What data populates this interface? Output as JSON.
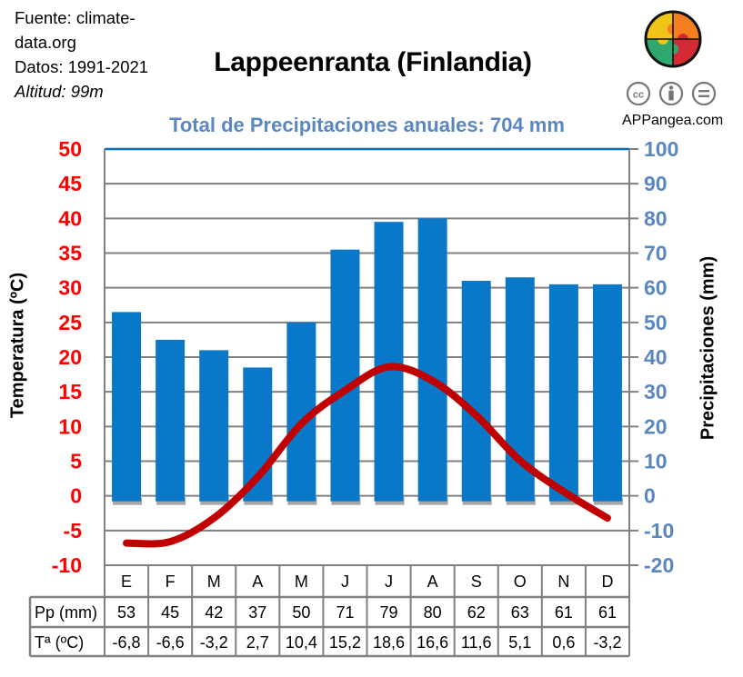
{
  "meta": {
    "source_line1": "Fuente: climate-",
    "source_line2": "data.org",
    "period": "Datos: 1991-2021",
    "altitude": "Altitud: 99m"
  },
  "brand": {
    "site": "APPangea.com",
    "logo_icon": "puzzle-globe-icon",
    "license_icons": [
      "cc-icon",
      "attribution-icon",
      "no-derivatives-icon"
    ]
  },
  "colors": {
    "bar": "#0a78c8",
    "bar_shadow": "#a6a6a6",
    "line": "#c00000",
    "left_axis": "#ff0000",
    "right_axis": "#5b87c0",
    "grid": "#808080",
    "top_border": "#0a6fb8"
  },
  "chart_data": {
    "type": "bar",
    "title": "Lappeenranta (Finlandia)",
    "subtitle": "Total de Precipitaciones anuales: 704 mm",
    "categories": [
      "E",
      "F",
      "M",
      "A",
      "M",
      "J",
      "J",
      "A",
      "S",
      "O",
      "N",
      "D"
    ],
    "series": [
      {
        "name": "Precipitaciones (mm)",
        "type": "bar",
        "axis": "right",
        "values": [
          53,
          45,
          42,
          37,
          50,
          71,
          79,
          80,
          62,
          63,
          61,
          61
        ]
      },
      {
        "name": "Temperatura (ºC)",
        "type": "line",
        "axis": "left",
        "values": [
          -6.8,
          -6.6,
          -3.2,
          2.7,
          10.4,
          15.2,
          18.6,
          16.6,
          11.6,
          5.1,
          0.6,
          -3.2
        ]
      }
    ],
    "ylabel": "Temperatura (ºC)",
    "ylabel_right": "Precipitaciones (mm)",
    "ylim": [
      -10,
      50
    ],
    "ylim_right": [
      -20,
      100
    ],
    "yticks": [
      "50",
      "45",
      "40",
      "35",
      "30",
      "25",
      "20",
      "15",
      "10",
      "5",
      "0",
      "-5",
      "-10"
    ],
    "yticks_right": [
      "100",
      "90",
      "80",
      "70",
      "60",
      "50",
      "40",
      "30",
      "20",
      "10",
      "0",
      "-10",
      "-20"
    ],
    "grid": true,
    "table": {
      "row_labels": [
        "Pp (mm)",
        "Tª (ºC)"
      ],
      "pp": [
        "53",
        "45",
        "42",
        "37",
        "50",
        "71",
        "79",
        "80",
        "62",
        "63",
        "61",
        "61"
      ],
      "t": [
        "-6,8",
        "-6,6",
        "-3,2",
        "2,7",
        "10,4",
        "15,2",
        "18,6",
        "16,6",
        "11,6",
        "5,1",
        "0,6",
        "-3,2"
      ]
    }
  }
}
